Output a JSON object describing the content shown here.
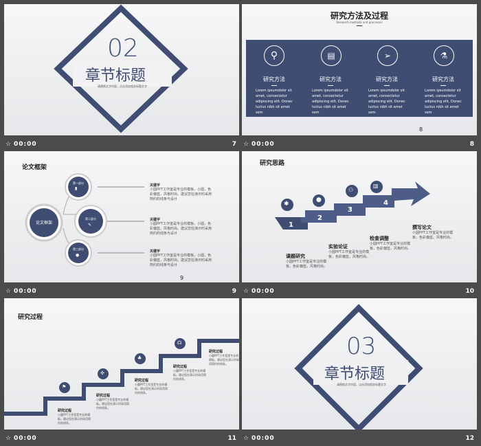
{
  "colors": {
    "navy": "#3f4d72",
    "bg": "#4b4b4b"
  },
  "slides": [
    {
      "no": "7",
      "time": "00:00",
      "big_num": "02",
      "title": "章节标题",
      "subtitle": "请替换文字内容，点击添加相关标题文字"
    },
    {
      "no": "8",
      "time": "00:00",
      "title": "研究方法及过程",
      "subtitle": "Research methods and processes",
      "page": "8",
      "items": [
        {
          "icon": "search-icon",
          "label": "研究方法",
          "text": "Lorem ipsumdolor sit amet, consectetur adipiscing elit. Donec luctus nibh sit amet sem"
        },
        {
          "icon": "newspaper-icon",
          "label": "研究方法",
          "text": "Lorem ipsumdolor sit amet, consectetur adipiscing elit. Donec luctus nibh sit amet sem"
        },
        {
          "icon": "paper-plane-icon",
          "label": "研究方法",
          "text": "Lorem ipsumdolor sit amet, consectetur adipiscing elit. Donec luctus nibh sit amet sem"
        },
        {
          "icon": "flask-icon",
          "label": "研究方法",
          "text": "Lorem ipsumdolor sit amet, consectetur adipiscing elit. Donec luctus nibh sit amet sem"
        }
      ]
    },
    {
      "no": "9",
      "time": "00:00",
      "title": "论文框架",
      "center": "论文框架",
      "page": "9",
      "nodes": [
        "第一部分",
        "第二部分",
        "第三部分"
      ],
      "keys": [
        {
          "k": "关键字",
          "t": "小圆PPT工作室是专业的模板。小圆，色彩偏蓝，风格时尚。建议您在演示时采用简约的线条与设计"
        },
        {
          "k": "关键字",
          "t": "小圆PPT工作室是专业的模板。小圆，色彩偏蓝，风格时尚。建议您在演示时采用简约的线条与设计"
        },
        {
          "k": "关键字",
          "t": "小圆PPT工作室是专业的模板。小圆，色彩偏蓝，风格时尚。建议您在演示时采用简约的线条与设计"
        }
      ]
    },
    {
      "no": "10",
      "time": "00:00",
      "title": "研究思路",
      "steps": [
        "1",
        "2",
        "3",
        "4"
      ],
      "labels": [
        {
          "h": "课题研究",
          "t": "小圆PPT工作室是专业的模板，色彩偏蓝，风格时尚。"
        },
        {
          "h": "实验论证",
          "t": "小圆PPT工作室是专业的模板，色彩偏蓝，风格时尚。"
        },
        {
          "h": "检查调整",
          "t": "小圆PPT工作室是专业的模板，色彩偏蓝，风格时尚。"
        },
        {
          "h": "撰写论文",
          "t": "小圆PPT工作室是专业的模板，色彩偏蓝，风格时尚。"
        }
      ]
    },
    {
      "no": "11",
      "time": "00:00",
      "title": "研究过程",
      "steps": [
        {
          "h": "研究过程",
          "t": "小圆PPT工作室是专业的模板。建议您在演示时采用简约的线条。"
        },
        {
          "h": "研究过程",
          "t": "小圆PPT工作室是专业的模板。建议您在演示时采用简约的线条。"
        },
        {
          "h": "研究过程",
          "t": "小圆PPT工作室是专业的模板。建议您在演示时采用简约的线条。"
        },
        {
          "h": "研究过程",
          "t": "小圆PPT工作室是专业的模板。建议您在演示时采用简约的线条。"
        },
        {
          "h": "研究过程",
          "t": "小圆PPT工作室是专业的模板。建议您在演示时采用简约的线条。"
        }
      ]
    },
    {
      "no": "12",
      "time": "00:00",
      "big_num": "03",
      "title": "章节标题",
      "subtitle": "请替换文字内容，点击添加相关标题文字"
    }
  ]
}
